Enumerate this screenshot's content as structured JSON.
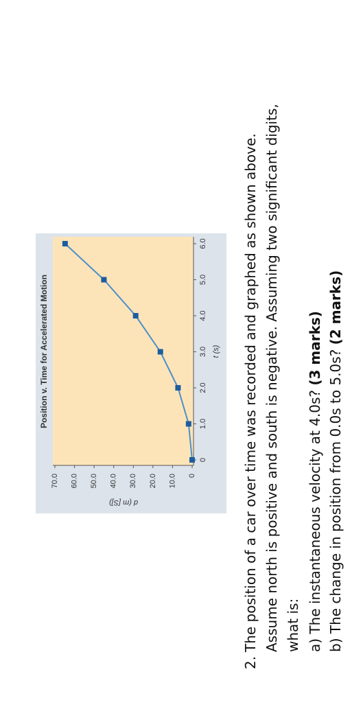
{
  "chart_data": {
    "type": "line",
    "title": "Position v. Time for Accelerated Motion",
    "x_label": "t (s)",
    "y_label": "d (m [S])",
    "x": [
      0,
      1,
      2,
      3,
      4,
      5,
      6
    ],
    "series": [
      {
        "color": "#4a8fcb",
        "marker_color": "#1d5d9f",
        "values": [
          0,
          1.8,
          7.2,
          16.2,
          28.8,
          45,
          64.8
        ]
      }
    ],
    "xlim": [
      0,
      6
    ],
    "ylim": [
      0,
      70
    ],
    "xticks": [
      0,
      {
        "value": 1,
        "label": "1.0"
      },
      {
        "value": 2,
        "label": "2.0"
      },
      {
        "value": 3,
        "label": "3.0"
      },
      {
        "value": 4,
        "label": "4.0"
      },
      {
        "value": 5,
        "label": "5.0"
      },
      {
        "value": 6,
        "label": "6.0"
      }
    ],
    "yticks": [
      0,
      {
        "value": 10,
        "label": "10.0"
      },
      {
        "value": 20,
        "label": "20.0"
      },
      {
        "value": 30,
        "label": "30.0"
      },
      {
        "value": 40,
        "label": "40.0"
      },
      {
        "value": 50,
        "label": "50.0"
      },
      {
        "value": 60,
        "label": "60.0"
      },
      {
        "value": 70,
        "label": "70.0"
      }
    ]
  },
  "question": {
    "number": "2.",
    "lines": [
      "The position of a car over time was recorded and graphed as shown above.",
      "Assume north is positive and south is negative.  Assuming two significant digits,",
      "what is:"
    ],
    "parts": [
      {
        "label": "a)",
        "text": "The instantaneous velocity at 4.0s?",
        "marks": "(3 marks)"
      },
      {
        "label": "b)",
        "text": "The change in position from 0.0s to 5.0s?",
        "marks": "(2 marks)"
      }
    ]
  }
}
